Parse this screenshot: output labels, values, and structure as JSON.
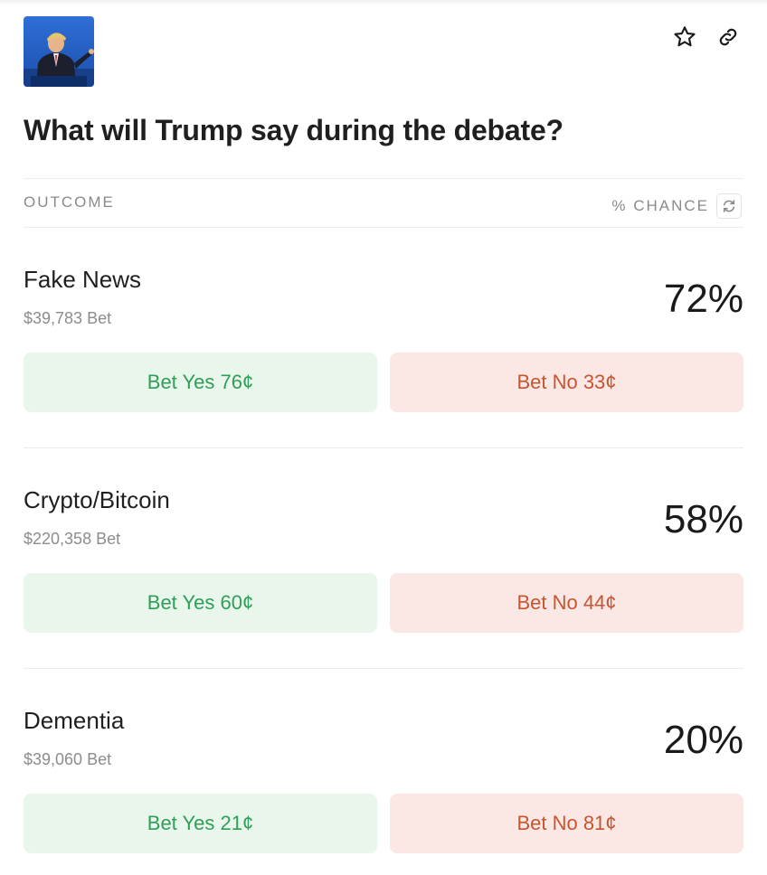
{
  "market": {
    "title": "What will Trump say during the debate?"
  },
  "header": {
    "thumbnail_icon": "debate-speaker-thumbnail",
    "favorite_icon": "star-icon",
    "share_icon": "link-icon"
  },
  "table": {
    "outcome_label": "OUTCOME",
    "chance_label": "% CHANCE",
    "refresh_icon": "refresh-icon"
  },
  "outcomes": [
    {
      "name": "Fake News",
      "volume": "$39,783 Bet",
      "chance": "72%",
      "yes": "Bet Yes 76¢",
      "no": "Bet No 33¢"
    },
    {
      "name": "Crypto/Bitcoin",
      "volume": "$220,358 Bet",
      "chance": "58%",
      "yes": "Bet Yes 60¢",
      "no": "Bet No 44¢"
    },
    {
      "name": "Dementia",
      "volume": "$39,060 Bet",
      "chance": "20%",
      "yes": "Bet Yes 21¢",
      "no": "Bet No 81¢"
    }
  ],
  "colors": {
    "yes_bg": "#e9f6ec",
    "yes_text": "#2f9e57",
    "no_bg": "#fbe8e5",
    "no_text": "#c9542f"
  }
}
